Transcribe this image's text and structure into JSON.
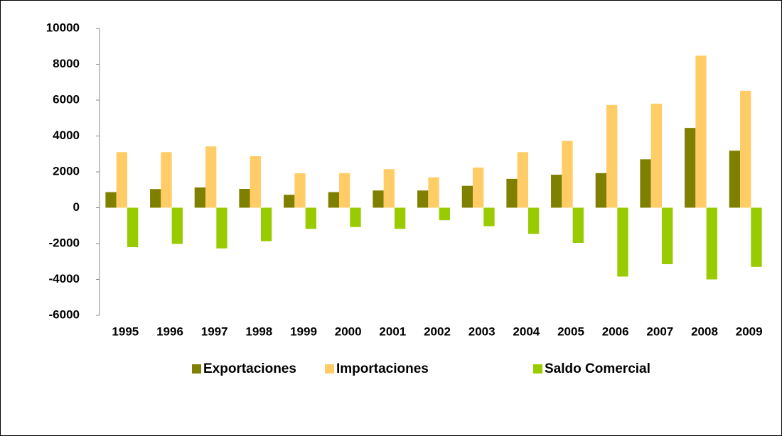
{
  "chart_data": {
    "type": "bar",
    "categories": [
      "1995",
      "1996",
      "1997",
      "1998",
      "1999",
      "2000",
      "2001",
      "2002",
      "2003",
      "2004",
      "2005",
      "2006",
      "2007",
      "2008",
      "2009"
    ],
    "series": [
      {
        "name": "Exportaciones",
        "color": "#808000",
        "values": [
          870,
          1040,
          1130,
          1050,
          720,
          870,
          960,
          960,
          1220,
          1610,
          1840,
          1930,
          2700,
          4450,
          3180
        ]
      },
      {
        "name": "Importaciones",
        "color": "#ffcc66",
        "values": [
          3100,
          3100,
          3420,
          2870,
          1920,
          1930,
          2150,
          1690,
          2240,
          3100,
          3730,
          5730,
          5800,
          8480,
          6520
        ]
      },
      {
        "name": "Saldo Comercial",
        "color": "#99cc00",
        "values": [
          -2200,
          -2020,
          -2270,
          -1870,
          -1180,
          -1080,
          -1180,
          -700,
          -1030,
          -1460,
          -1960,
          -3840,
          -3150,
          -4000,
          -3300
        ]
      }
    ],
    "ylim": [
      -6000,
      10000
    ],
    "yticks": [
      -6000,
      -4000,
      -2000,
      0,
      2000,
      4000,
      6000,
      8000,
      10000
    ],
    "grid": false,
    "legend": "bottom"
  }
}
